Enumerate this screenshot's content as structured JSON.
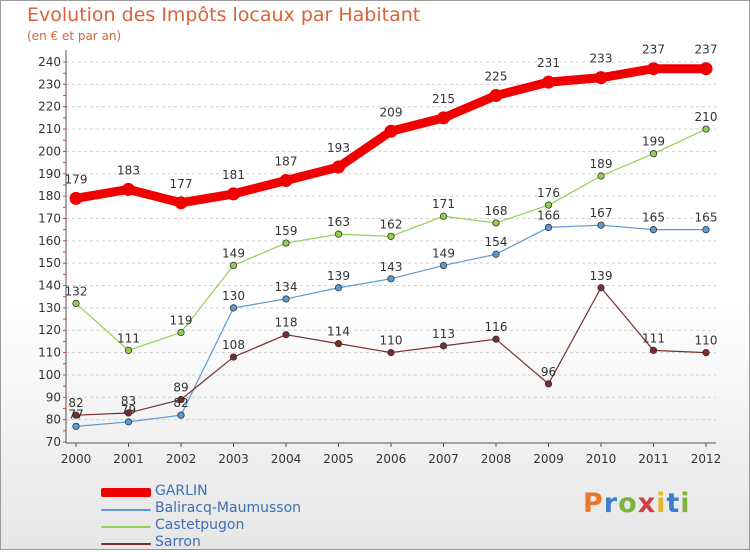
{
  "header": {
    "title": "Evolution des Impôts locaux par Habitant",
    "subtitle": "(en € et par an)"
  },
  "brand": {
    "text": "Proxiti",
    "letter_colors": [
      "#e8792b",
      "#3a7fd0",
      "#7ab43a",
      "#d23f3f",
      "#e8b62b",
      "#3a7fd0",
      "#7ab43a"
    ]
  },
  "chart_data": {
    "type": "line",
    "title": "Evolution des Impôts locaux par Habitant",
    "subtitle": "(en € et par an)",
    "x": [
      "2000",
      "2001",
      "2002",
      "2003",
      "2004",
      "2005",
      "2006",
      "2007",
      "2008",
      "2009",
      "2010",
      "2011",
      "2012"
    ],
    "ylim": [
      70,
      240
    ],
    "yticks": [
      70,
      80,
      90,
      100,
      110,
      120,
      130,
      140,
      150,
      160,
      170,
      180,
      190,
      200,
      210,
      220,
      230,
      240
    ],
    "grid": "horizontal dashed",
    "legend_position": "bottom-left",
    "series": [
      {
        "name": "GARLIN",
        "color": "#f00000",
        "emphasis": true,
        "values": [
          179,
          183,
          177,
          181,
          187,
          193,
          209,
          215,
          225,
          231,
          233,
          237,
          237
        ]
      },
      {
        "name": "Baliracq-Maumusson",
        "color": "#5b9bd5",
        "emphasis": false,
        "values": [
          77,
          79,
          82,
          130,
          134,
          139,
          143,
          149,
          154,
          166,
          167,
          165,
          165
        ]
      },
      {
        "name": "Castetpugon",
        "color": "#92d050",
        "emphasis": false,
        "values": [
          132,
          111,
          119,
          149,
          159,
          163,
          162,
          171,
          168,
          176,
          189,
          199,
          210
        ]
      },
      {
        "name": "Sarron",
        "color": "#7b2c2c",
        "emphasis": false,
        "values": [
          82,
          83,
          89,
          108,
          118,
          114,
          110,
          113,
          116,
          96,
          139,
          111,
          110
        ]
      }
    ]
  }
}
